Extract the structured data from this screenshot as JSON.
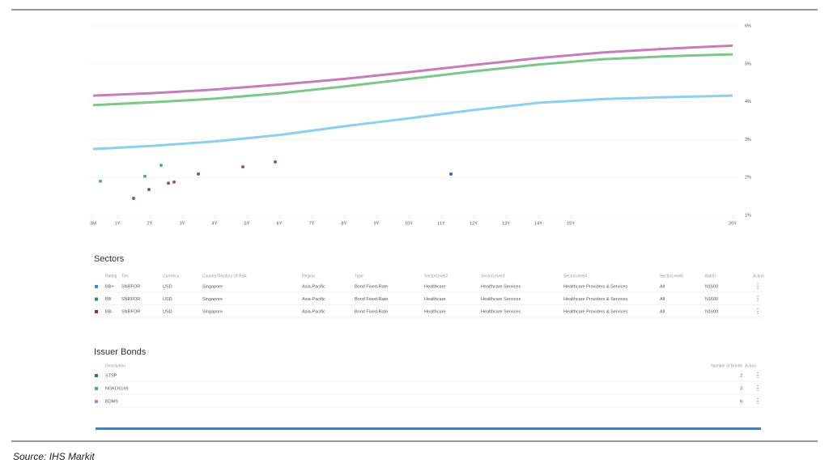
{
  "chart_data": {
    "type": "line",
    "x": [
      0.25,
      2,
      4,
      6,
      8,
      10,
      12,
      14,
      16,
      18,
      20
    ],
    "series": [
      {
        "color": "#c77dbb",
        "values": [
          4.16,
          4.22,
          4.32,
          4.45,
          4.6,
          4.78,
          4.97,
          5.15,
          5.3,
          5.4,
          5.48
        ]
      },
      {
        "color": "#7cc68a",
        "values": [
          3.91,
          3.98,
          4.08,
          4.22,
          4.4,
          4.6,
          4.8,
          4.98,
          5.12,
          5.2,
          5.25
        ]
      },
      {
        "color": "#8ccfee",
        "values": [
          2.75,
          2.83,
          2.95,
          3.12,
          3.35,
          3.56,
          3.78,
          3.97,
          4.07,
          4.12,
          4.16
        ]
      }
    ],
    "scatter": [
      {
        "color": "#9b4a8c",
        "x": [
          1.5,
          1.975,
          2.575,
          2.75,
          3.5,
          4.875,
          5.875
        ],
        "y": [
          1.45,
          1.68,
          1.85,
          1.88,
          2.09,
          2.28,
          2.41
        ]
      },
      {
        "color": "#4fae7a",
        "x": [
          0.475,
          1.85,
          2.35
        ],
        "y": [
          1.9,
          2.03,
          2.32
        ]
      },
      {
        "color": "#2f6ca8",
        "x": [
          11.3
        ],
        "y": [
          2.09
        ]
      }
    ],
    "xlim": [
      0.25,
      20
    ],
    "xticks": [
      {
        "value": 0.25,
        "label": "3M"
      },
      {
        "value": 1,
        "label": "1Y"
      },
      {
        "value": 2,
        "label": "2Y"
      },
      {
        "value": 3,
        "label": "3Y"
      },
      {
        "value": 4,
        "label": "4Y"
      },
      {
        "value": 5,
        "label": "5Y"
      },
      {
        "value": 6,
        "label": "6Y"
      },
      {
        "value": 7,
        "label": "7Y"
      },
      {
        "value": 8,
        "label": "8Y"
      },
      {
        "value": 9,
        "label": "9Y"
      },
      {
        "value": 10,
        "label": "10Y"
      },
      {
        "value": 11,
        "label": "11Y"
      },
      {
        "value": 12,
        "label": "12Y"
      },
      {
        "value": 13,
        "label": "13Y"
      },
      {
        "value": 14,
        "label": "14Y"
      },
      {
        "value": 15,
        "label": "15Y"
      },
      {
        "value": 20,
        "label": "20Y"
      }
    ],
    "ylim": [
      1,
      6
    ],
    "yticks": [
      {
        "value": 1,
        "label": "1%"
      },
      {
        "value": 2,
        "label": "2%"
      },
      {
        "value": 3,
        "label": "3%"
      },
      {
        "value": 4,
        "label": "4%"
      },
      {
        "value": 5,
        "label": "5%"
      },
      {
        "value": 6,
        "label": "6%"
      }
    ],
    "grid": true
  },
  "sectors": {
    "title": "Sectors",
    "columns": [
      "Rating",
      "Tier",
      "Currency",
      "Country/Territory Of Risk",
      "Region",
      "Type",
      "SectorLevel2",
      "SectorLevel3",
      "SectorLevel4",
      "SectorLevel5",
      "Batch",
      "Action"
    ],
    "row_colors": [
      "#3a8fd0",
      "#2e8b57",
      "#7a2f6e"
    ],
    "rows": [
      [
        "BB+",
        "SNRFOR",
        "USD",
        "Singapore",
        "Asia-Pacific",
        "Bond Fixed-Rate",
        "Healthcare",
        "Healthcare Services",
        "Healthcare Providers & Services",
        "All",
        "N1600"
      ],
      [
        "BB",
        "SNRFOR",
        "USD",
        "Singapore",
        "Asia-Pacific",
        "Bond Fixed-Rate",
        "Healthcare",
        "Healthcare Services",
        "Healthcare Providers & Services",
        "All",
        "N1600"
      ],
      [
        "BB-",
        "SNRFOR",
        "USD",
        "Singapore",
        "Asia-Pacific",
        "Bond Fixed-Rate",
        "Healthcare",
        "Healthcare Services",
        "Healthcare Providers & Services",
        "All",
        "N1600"
      ]
    ]
  },
  "issuer_bonds": {
    "title": "Issuer Bonds",
    "columns": [
      "Description",
      "Number of Bonds",
      "Action"
    ],
    "row_colors": [
      "#2f6ca8",
      "#4fae7a",
      "#c77dbb"
    ],
    "rows": [
      [
        "STSP",
        2
      ],
      [
        "NGKO6169",
        3
      ],
      [
        "BDMS",
        6
      ]
    ]
  },
  "source": "Source: IHS Markit"
}
